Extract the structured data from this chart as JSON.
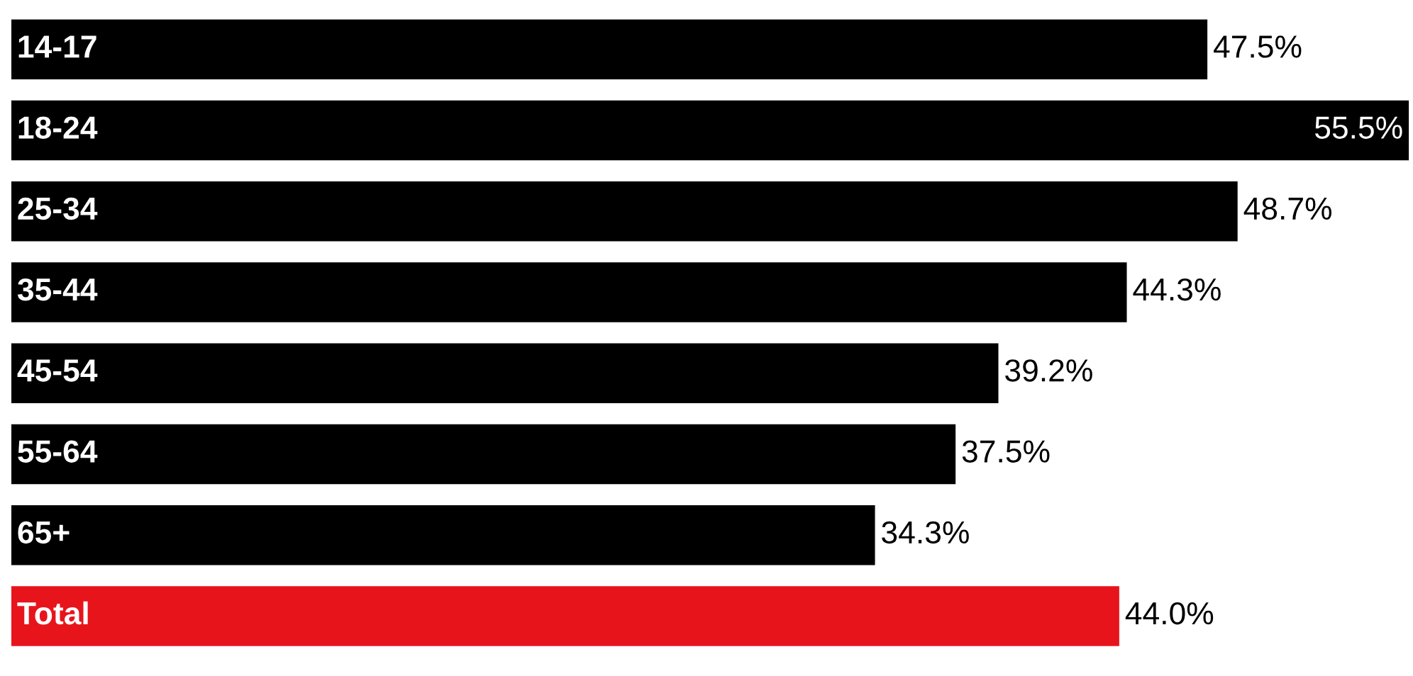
{
  "chart_data": {
    "type": "bar",
    "orientation": "horizontal",
    "categories": [
      "14-17",
      "18-24",
      "25-34",
      "35-44",
      "45-54",
      "55-64",
      "65+",
      "Total"
    ],
    "values": [
      47.5,
      55.5,
      48.7,
      44.3,
      39.2,
      37.5,
      34.3,
      44.0
    ],
    "value_labels": [
      "47.5%",
      "55.5%",
      "48.7%",
      "44.3%",
      "39.2%",
      "37.5%",
      "34.3%",
      "44.0%"
    ],
    "colors": [
      "#000000",
      "#000000",
      "#000000",
      "#000000",
      "#000000",
      "#000000",
      "#000000",
      "#e8141c"
    ]
  }
}
